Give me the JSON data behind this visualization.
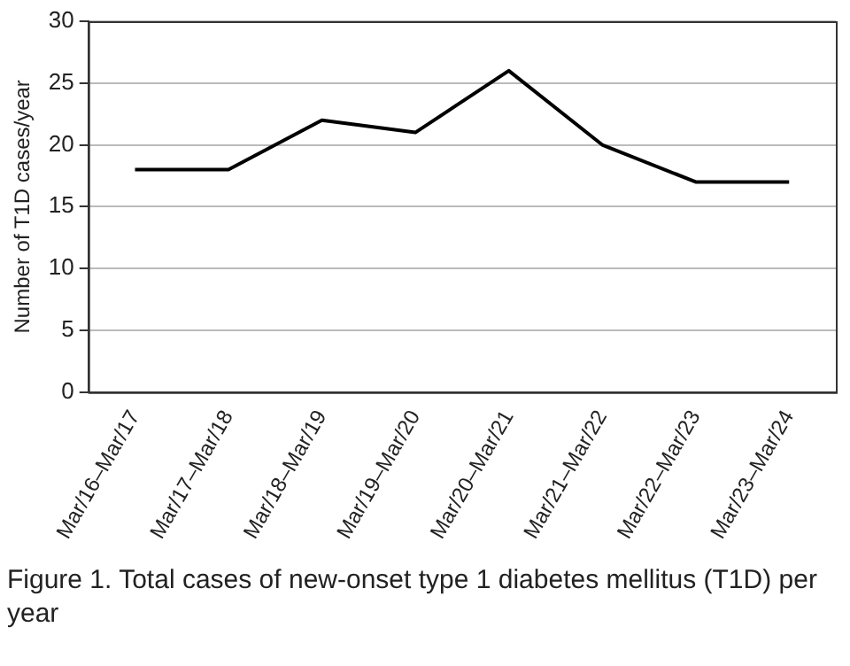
{
  "chart_data": {
    "type": "line",
    "ylabel": "Number of T1D cases/year",
    "categories": [
      "Mar/16–Mar/17",
      "Mar/17–Mar/18",
      "Mar/18–Mar/19",
      "Mar/19–Mar/20",
      "Mar/20–Mar/21",
      "Mar/21–Mar/22",
      "Mar/22–Mar/23",
      "Mar/23–Mar/24"
    ],
    "series": [
      {
        "color": "#000000",
        "values": [
          18,
          18,
          22,
          21,
          26,
          20,
          17,
          17
        ]
      }
    ],
    "ylim": [
      0,
      30
    ],
    "yticks": [
      0,
      5,
      10,
      15,
      20,
      25,
      30
    ],
    "grid": "y",
    "legend": false,
    "marker": "none",
    "line_style": "solid",
    "annotations": [
      "Figure 1. Total cases of new-onset type 1 diabetes mellitus (T1D) per year"
    ]
  }
}
